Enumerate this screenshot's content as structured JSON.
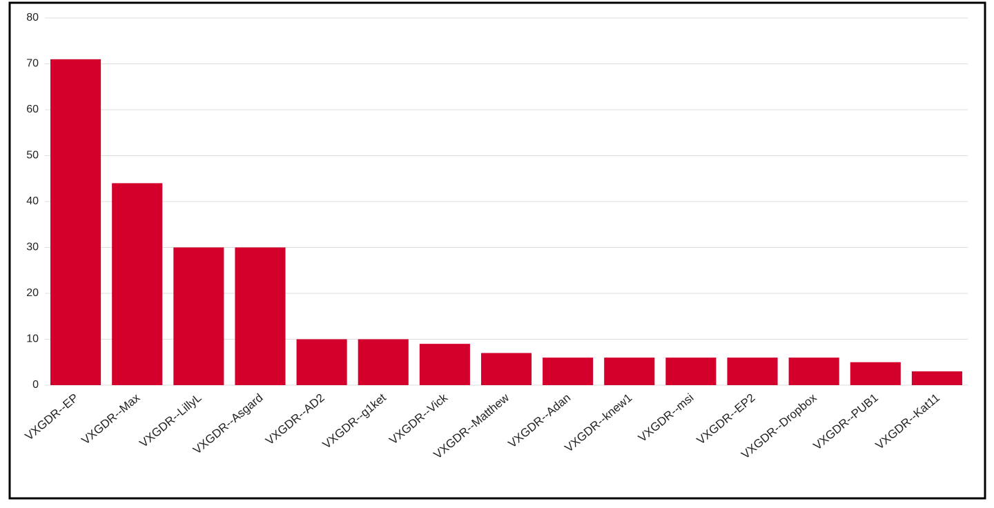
{
  "chart_data": {
    "type": "bar",
    "categories": [
      "VXGDR--EP",
      "VXGDR--Max",
      "VXGDR--LillyL",
      "VXGDR--Asgard",
      "VXGDR--AD2",
      "VXGDR--g1ket",
      "VXGDR--Vick",
      "VXGDR--Matthew",
      "VXGDR--Adan",
      "VXGDR--knew1",
      "VXGDR--msi",
      "VXGDR--EP2",
      "VXGDR--Dropbox",
      "VXGDR--PUB1",
      "VXGDR--Kat11"
    ],
    "values": [
      71,
      44,
      30,
      30,
      10,
      10,
      9,
      7,
      6,
      6,
      6,
      6,
      6,
      5,
      3
    ],
    "color": "#d3002c",
    "ylim": [
      0,
      80
    ],
    "yticks": [
      0,
      10,
      20,
      30,
      40,
      50,
      60,
      70,
      80
    ],
    "grid": true
  }
}
